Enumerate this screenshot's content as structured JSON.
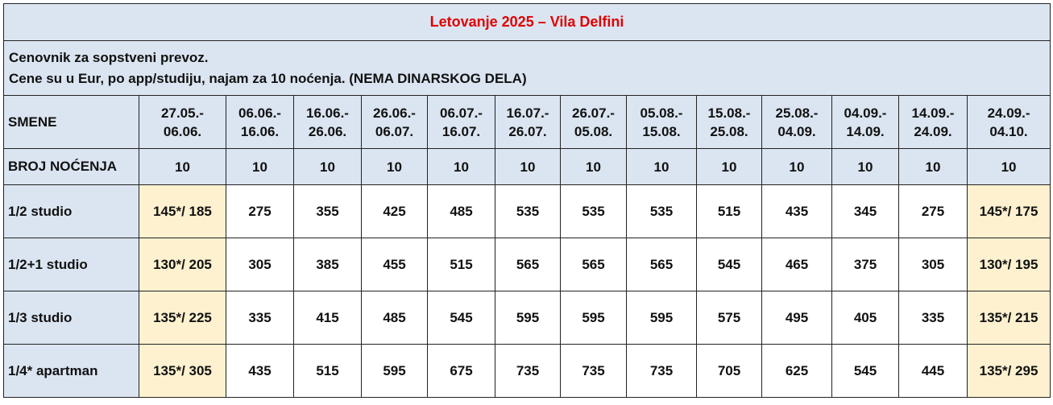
{
  "title": "Letovanje 2025 – Vila Delfini",
  "info": {
    "line1": "Cenovnik za sopstveni prevoz.",
    "line2": "Cene su u Eur, po app/studiju, najam za 10  noćenja. (NEMA DINARSKOG DELA)"
  },
  "header": {
    "shifts_label": "SMENE",
    "nights_label": "BROJ NOĆENJA",
    "periods": [
      {
        "from": "27.05.-",
        "to": "06.06."
      },
      {
        "from": "06.06.-",
        "to": "16.06."
      },
      {
        "from": "16.06.-",
        "to": "26.06."
      },
      {
        "from": "26.06.-",
        "to": "06.07."
      },
      {
        "from": "06.07.-",
        "to": "16.07."
      },
      {
        "from": "16.07.-",
        "to": "26.07."
      },
      {
        "from": "26.07.-",
        "to": "05.08."
      },
      {
        "from": "05.08.-",
        "to": "15.08."
      },
      {
        "from": "15.08.-",
        "to": "25.08."
      },
      {
        "from": "25.08.-",
        "to": "04.09."
      },
      {
        "from": "04.09.-",
        "to": "14.09."
      },
      {
        "from": "14.09.-",
        "to": "24.09."
      },
      {
        "from": "24.09.-",
        "to": "04.10."
      }
    ],
    "nights": [
      "10",
      "10",
      "10",
      "10",
      "10",
      "10",
      "10",
      "10",
      "10",
      "10",
      "10",
      "10",
      "10"
    ]
  },
  "rows": [
    {
      "label": "1/2 studio",
      "prices": [
        "145*/ 185",
        "275",
        "355",
        "425",
        "485",
        "535",
        "535",
        "535",
        "515",
        "435",
        "345",
        "275",
        "145*/ 175"
      ]
    },
    {
      "label": "1/2+1 studio",
      "prices": [
        "130*/ 205",
        "305",
        "385",
        "455",
        "515",
        "565",
        "565",
        "565",
        "545",
        "465",
        "375",
        "305",
        "130*/ 195"
      ]
    },
    {
      "label": "1/3 studio",
      "prices": [
        "135*/ 225",
        "335",
        "415",
        "485",
        "545",
        "595",
        "595",
        "595",
        "575",
        "495",
        "405",
        "335",
        "135*/ 215"
      ]
    },
    {
      "label": "1/4* apartman",
      "prices": [
        "135*/ 305",
        "435",
        "515",
        "595",
        "675",
        "735",
        "735",
        "735",
        "705",
        "625",
        "545",
        "445",
        "135*/ 295"
      ]
    }
  ],
  "colors": {
    "header_bg": "#dbe5f1",
    "price_bg": "#fdf1cf",
    "title_text": "#e00000"
  }
}
